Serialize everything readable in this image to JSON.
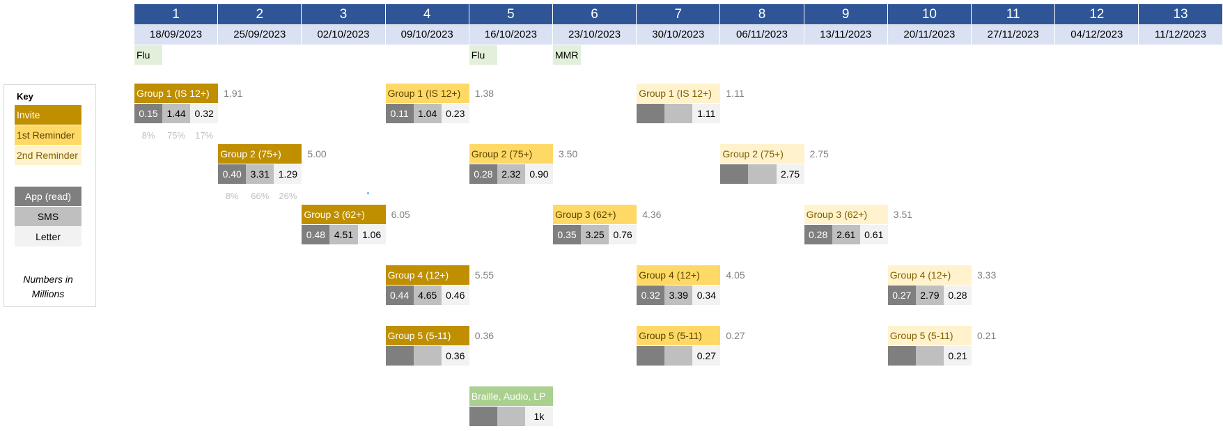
{
  "weeks": [
    {
      "num": "1",
      "date": "18/09/2023"
    },
    {
      "num": "2",
      "date": "25/09/2023"
    },
    {
      "num": "3",
      "date": "02/10/2023"
    },
    {
      "num": "4",
      "date": "09/10/2023"
    },
    {
      "num": "5",
      "date": "16/10/2023"
    },
    {
      "num": "6",
      "date": "23/10/2023"
    },
    {
      "num": "7",
      "date": "30/10/2023"
    },
    {
      "num": "8",
      "date": "06/11/2023"
    },
    {
      "num": "9",
      "date": "13/11/2023"
    },
    {
      "num": "10",
      "date": "20/11/2023"
    },
    {
      "num": "11",
      "date": "27/11/2023"
    },
    {
      "num": "12",
      "date": "04/12/2023"
    },
    {
      "num": "13",
      "date": "11/12/2023"
    }
  ],
  "vaccines": [
    {
      "week": 1,
      "label": "Flu"
    },
    {
      "week": 5,
      "label": "Flu"
    },
    {
      "week": 6,
      "label": "MMR"
    }
  ],
  "key": {
    "title": "Key",
    "stages": [
      {
        "label": "Invite",
        "style": "invite"
      },
      {
        "label": "1st Reminder",
        "style": "r1"
      },
      {
        "label": "2nd Reminder",
        "style": "r2"
      }
    ],
    "channels": [
      {
        "label": "App (read)",
        "style": "app"
      },
      {
        "label": "SMS",
        "style": "sms"
      },
      {
        "label": "Letter",
        "style": "let"
      }
    ],
    "note": "Numbers in Millions"
  },
  "colors": {
    "invite": "#bf8f00",
    "reminder_1": "#ffd966",
    "reminder_2": "#fff2cc",
    "braille_audio_lp": "#a9d08e",
    "app": "#7f7f7f",
    "sms": "#bfbfbf",
    "letter": "#f2f2f2",
    "header": "#2f5597",
    "date_row": "#d9e1f2"
  },
  "blocks": [
    {
      "week": 1,
      "row": 1,
      "stage": "invite",
      "label": "Group 1 (IS 12+)",
      "total": "1.91",
      "app": "0.15",
      "sms": "1.44",
      "letter": "0.32",
      "pcts": [
        "8%",
        "75%",
        "17%"
      ]
    },
    {
      "week": 4,
      "row": 1,
      "stage": "r1",
      "label": "Group 1 (IS 12+)",
      "total": "1.38",
      "app": "0.11",
      "sms": "1.04",
      "letter": "0.23"
    },
    {
      "week": 7,
      "row": 1,
      "stage": "r2",
      "label": "Group 1 (IS 12+)",
      "total": "1.11",
      "app": "",
      "sms": "",
      "letter": "1.11"
    },
    {
      "week": 2,
      "row": 2,
      "stage": "invite",
      "label": "Group 2 (75+)",
      "total": "5.00",
      "app": "0.40",
      "sms": "3.31",
      "letter": "1.29",
      "pcts": [
        "8%",
        "66%",
        "26%"
      ]
    },
    {
      "week": 5,
      "row": 2,
      "stage": "r1",
      "label": "Group 2 (75+)",
      "total": "3.50",
      "app": "0.28",
      "sms": "2.32",
      "letter": "0.90"
    },
    {
      "week": 8,
      "row": 2,
      "stage": "r2",
      "label": "Group 2 (75+)",
      "total": "2.75",
      "app": "",
      "sms": "",
      "letter": "2.75"
    },
    {
      "week": 3,
      "row": 3,
      "stage": "invite",
      "label": "Group 3 (62+)",
      "total": "6.05",
      "app": "0.48",
      "sms": "4.51",
      "letter": "1.06"
    },
    {
      "week": 6,
      "row": 3,
      "stage": "r1",
      "label": "Group 3 (62+)",
      "total": "4.36",
      "app": "0.35",
      "sms": "3.25",
      "letter": "0.76"
    },
    {
      "week": 9,
      "row": 3,
      "stage": "r2",
      "label": "Group 3 (62+)",
      "total": "3.51",
      "app": "0.28",
      "sms": "2.61",
      "letter": "0.61"
    },
    {
      "week": 4,
      "row": 4,
      "stage": "invite",
      "label": "Group 4 (12+)",
      "total": "5.55",
      "app": "0.44",
      "sms": "4.65",
      "letter": "0.46"
    },
    {
      "week": 7,
      "row": 4,
      "stage": "r1",
      "label": "Group 4 (12+)",
      "total": "4.05",
      "app": "0.32",
      "sms": "3.39",
      "letter": "0.34"
    },
    {
      "week": 10,
      "row": 4,
      "stage": "r2",
      "label": "Group 4 (12+)",
      "total": "3.33",
      "app": "0.27",
      "sms": "2.79",
      "letter": "0.28"
    },
    {
      "week": 4,
      "row": 5,
      "stage": "invite",
      "label": "Group 5 (5-11)",
      "total": "0.36",
      "app": "",
      "sms": "",
      "letter": "0.36"
    },
    {
      "week": 7,
      "row": 5,
      "stage": "r1",
      "label": "Group 5 (5-11)",
      "total": "0.27",
      "app": "",
      "sms": "",
      "letter": "0.27"
    },
    {
      "week": 10,
      "row": 5,
      "stage": "r2",
      "label": "Group 5 (5-11)",
      "total": "0.21",
      "app": "",
      "sms": "",
      "letter": "0.21"
    },
    {
      "week": 5,
      "row": 6,
      "stage": "ba",
      "label": "Braille, Audio, LP",
      "total": "",
      "app": "",
      "sms": "",
      "letter": "1k"
    }
  ]
}
